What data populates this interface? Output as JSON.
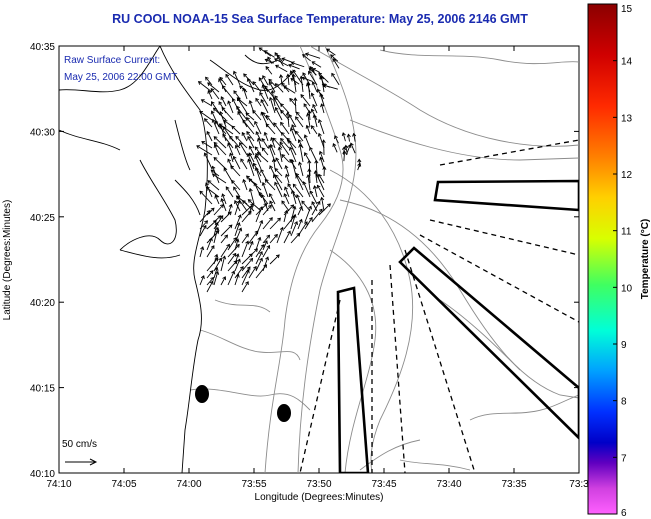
{
  "title": "RU COOL  NOAA-15  Sea Surface Temperature:  May 25, 2006 2146 GMT",
  "annotation": {
    "line1": "Raw Surface Current:",
    "line2": "May 25, 2006 22:00 GMT"
  },
  "scale_label": "50 cm/s",
  "axes": {
    "xlabel": "Longitude (Degrees:Minutes)",
    "ylabel": "Latitude (Degrees:Minutes)",
    "xticks": [
      "74:10",
      "74:05",
      "74:00",
      "73:55",
      "73:50",
      "73:45",
      "73:40",
      "73:35",
      "73:3"
    ],
    "yticks": [
      "40:35",
      "40:30",
      "40:25",
      "40:20",
      "40:15",
      "40:10"
    ]
  },
  "colorbar": {
    "label": "Temperature (°C)",
    "ticks": [
      "15",
      "14",
      "13",
      "12",
      "11",
      "10",
      "9",
      "8",
      "7",
      "6"
    ],
    "range": [
      6,
      15
    ]
  },
  "colors": {
    "title": "#1a2bb0",
    "annotation": "#1a2bb0",
    "land": "#000000",
    "contour": "#8c8c8c"
  }
}
